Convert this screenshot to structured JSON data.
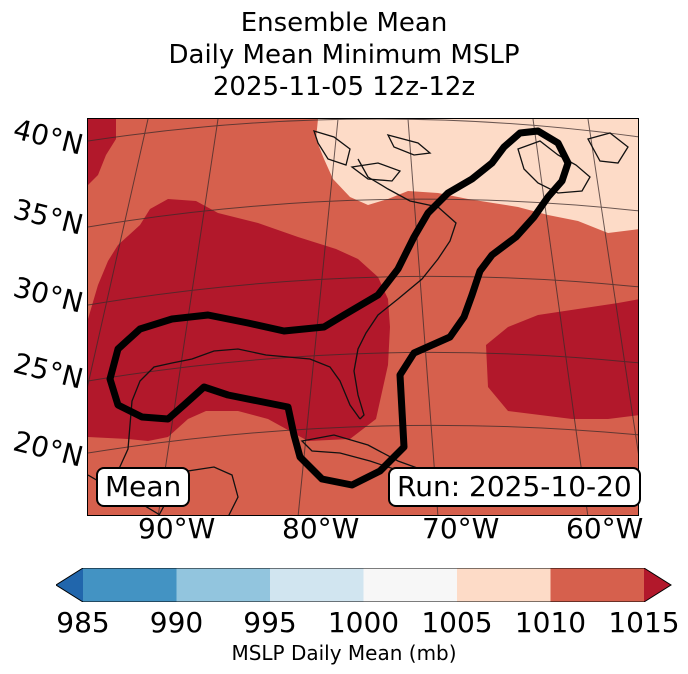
{
  "title": {
    "line1": "Ensemble Mean",
    "line2": "Daily Mean Minimum MSLP",
    "line3": "2025-11-05 12z-12z"
  },
  "map": {
    "latitude_labels": [
      "40°N",
      "35°N",
      "30°N",
      "25°N",
      "20°N"
    ],
    "longitude_labels": [
      "90°W",
      "80°W",
      "70°W",
      "60°W"
    ],
    "badge_left": "Mean",
    "badge_right": "Run: 2025-10-20",
    "colors": {
      "1005_1010": "#fddbc7",
      "1010_1015": "#d6604d",
      "above_1015": "#b2182b",
      "contour": "#000000",
      "coast": "#111111"
    }
  },
  "colorbar": {
    "label": "MSLP Daily Mean (mb)",
    "ticks": [
      "985",
      "990",
      "995",
      "1000",
      "1005",
      "1010",
      "1015"
    ],
    "segments": [
      {
        "range": "985-990",
        "color": "#4393c3"
      },
      {
        "range": "990-995",
        "color": "#92c5de"
      },
      {
        "range": "995-1000",
        "color": "#d1e5f0"
      },
      {
        "range": "1000-1005",
        "color": "#f7f7f7"
      },
      {
        "range": "1005-1010",
        "color": "#fddbc7"
      },
      {
        "range": "1010-1015",
        "color": "#d6604d"
      }
    ],
    "under_color": "#2166ac",
    "over_color": "#b2182b"
  }
}
